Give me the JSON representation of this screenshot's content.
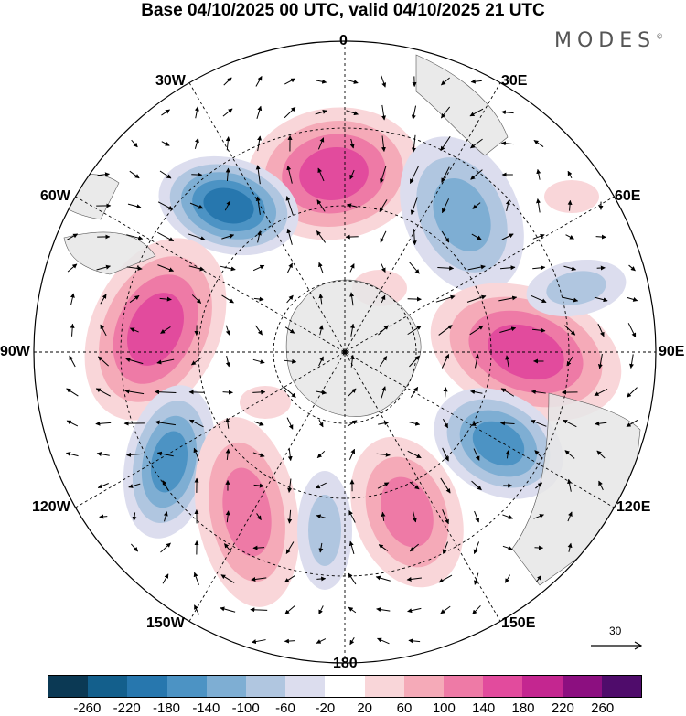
{
  "title": "Base 04/10/2025 00 UTC, valid 04/10/2025 21 UTC",
  "brand": "MODES",
  "brand_mark": "©",
  "longitude_labels": {
    "top": "0",
    "top_left": "30W",
    "top_right": "30E",
    "upper_left": "60W",
    "upper_right": "60E",
    "left": "90W",
    "right": "90E",
    "lower_left": "120W",
    "lower_right": "120E",
    "bottom_left": "150W",
    "bottom_right": "150E",
    "bottom": "180"
  },
  "vector_scale_label": "30",
  "colorbar": {
    "colors": [
      "#0b3954",
      "#135f8c",
      "#2777ae",
      "#4c93c4",
      "#7eaed3",
      "#b0c6e0",
      "#dcddee",
      "#ffffff",
      "#f9d6d9",
      "#f5aab8",
      "#ee7aa6",
      "#e24b9d",
      "#c42690",
      "#8c0f80",
      "#4f0c6b"
    ],
    "tick_labels": [
      "-260",
      "-220",
      "-180",
      "-140",
      "-100",
      "-60",
      "-20",
      "20",
      "60",
      "100",
      "140",
      "180",
      "220",
      "260"
    ]
  },
  "field_colors": {
    "positive_weak": "#f9d6d9",
    "positive_mid": "#f5aab8",
    "positive_strong": "#ee7aa6",
    "positive_core": "#e24b9d",
    "positive_peak": "#c42690",
    "negative_weak": "#dcddee",
    "negative_mid": "#b0c6e0",
    "negative_strong": "#7eaed3",
    "negative_core": "#4c93c4",
    "negative_peak": "#2777ae",
    "land": "#e6e6e6"
  }
}
